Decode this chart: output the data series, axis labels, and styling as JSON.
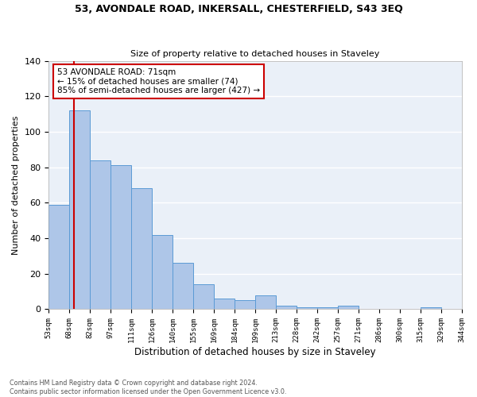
{
  "title1": "53, AVONDALE ROAD, INKERSALL, CHESTERFIELD, S43 3EQ",
  "title2": "Size of property relative to detached houses in Staveley",
  "xlabel": "Distribution of detached houses by size in Staveley",
  "ylabel": "Number of detached properties",
  "footnote": "Contains HM Land Registry data © Crown copyright and database right 2024.\nContains public sector information licensed under the Open Government Licence v3.0.",
  "bin_labels": [
    "53sqm",
    "68sqm",
    "82sqm",
    "97sqm",
    "111sqm",
    "126sqm",
    "140sqm",
    "155sqm",
    "169sqm",
    "184sqm",
    "199sqm",
    "213sqm",
    "228sqm",
    "242sqm",
    "257sqm",
    "271sqm",
    "286sqm",
    "300sqm",
    "315sqm",
    "329sqm",
    "344sqm"
  ],
  "bar_heights": [
    59,
    112,
    84,
    81,
    68,
    42,
    26,
    14,
    6,
    5,
    8,
    2,
    1,
    1,
    2,
    0,
    0,
    0,
    1,
    0
  ],
  "bar_color": "#aec6e8",
  "bar_edge_color": "#5b9bd5",
  "background_color": "#eaf0f8",
  "vline_color": "#cc0000",
  "annotation_text": "53 AVONDALE ROAD: 71sqm\n← 15% of detached houses are smaller (74)\n85% of semi-detached houses are larger (427) →",
  "annotation_box_color": "#cc0000",
  "ylim": [
    0,
    140
  ],
  "yticks": [
    0,
    20,
    40,
    60,
    80,
    100,
    120,
    140
  ]
}
